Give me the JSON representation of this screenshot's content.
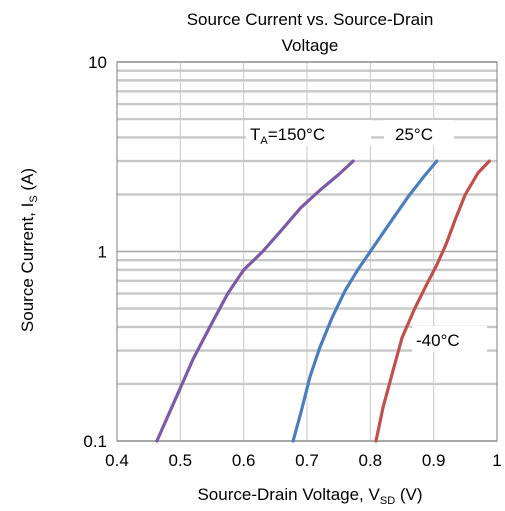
{
  "chart_data": {
    "type": "line",
    "title": "Source Current vs. Source-Drain Voltage",
    "title_lines": [
      "Source Current vs. Source-Drain",
      "Voltage"
    ],
    "xlabel": {
      "main": "Source-Drain Voltage, V",
      "sub": "SD",
      "unit": " (V)"
    },
    "ylabel": {
      "main": "Source Current, I",
      "sub": "S",
      "unit": " (A)"
    },
    "xlim": [
      0.4,
      1.0
    ],
    "ylim": [
      0.1,
      10
    ],
    "yscale": "log",
    "grid": true,
    "x_ticks": [
      "0.4",
      "0.5",
      "0.6",
      "0.7",
      "0.8",
      "0.9",
      "1"
    ],
    "x_tick_values": [
      0.4,
      0.5,
      0.6,
      0.7,
      0.8,
      0.9,
      1.0
    ],
    "y_ticks": [
      "0.1",
      "1",
      "10"
    ],
    "y_tick_values": [
      0.1,
      1,
      10
    ],
    "series": [
      {
        "name": "TA=150°C",
        "label_main": "T",
        "label_sub": "A",
        "label_rest": "=150°C",
        "color": "#7b5aa6",
        "points": [
          [
            0.463,
            0.1
          ],
          [
            0.49,
            0.16
          ],
          [
            0.52,
            0.27
          ],
          [
            0.55,
            0.42
          ],
          [
            0.575,
            0.6
          ],
          [
            0.6,
            0.8
          ],
          [
            0.63,
            1.0
          ],
          [
            0.66,
            1.3
          ],
          [
            0.69,
            1.7
          ],
          [
            0.72,
            2.1
          ],
          [
            0.75,
            2.55
          ],
          [
            0.773,
            3.0
          ]
        ]
      },
      {
        "name": "25°C",
        "color": "#4a7ebb",
        "points": [
          [
            0.678,
            0.1
          ],
          [
            0.69,
            0.14
          ],
          [
            0.705,
            0.22
          ],
          [
            0.72,
            0.31
          ],
          [
            0.74,
            0.45
          ],
          [
            0.76,
            0.62
          ],
          [
            0.78,
            0.8
          ],
          [
            0.8,
            1.0
          ],
          [
            0.83,
            1.4
          ],
          [
            0.86,
            1.95
          ],
          [
            0.885,
            2.5
          ],
          [
            0.905,
            3.0
          ]
        ]
      },
      {
        "name": "-40°C",
        "color": "#c0504d",
        "points": [
          [
            0.809,
            0.1
          ],
          [
            0.82,
            0.15
          ],
          [
            0.835,
            0.23
          ],
          [
            0.85,
            0.35
          ],
          [
            0.87,
            0.5
          ],
          [
            0.89,
            0.68
          ],
          [
            0.905,
            0.85
          ],
          [
            0.92,
            1.1
          ],
          [
            0.935,
            1.5
          ],
          [
            0.95,
            2.0
          ],
          [
            0.97,
            2.6
          ],
          [
            0.988,
            3.0
          ]
        ]
      }
    ]
  }
}
